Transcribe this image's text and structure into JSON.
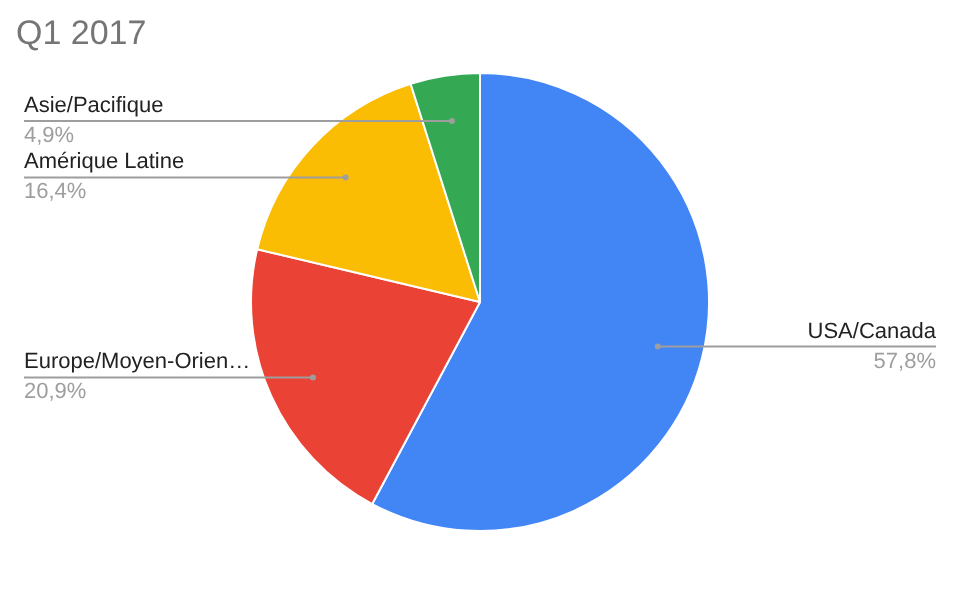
{
  "chart_data": {
    "type": "pie",
    "title": "Q1 2017",
    "categories": [
      "USA/Canada",
      "Europe/Moyen-Orien…",
      "Amérique Latine",
      "Asie/Pacifique"
    ],
    "values": [
      57.8,
      20.9,
      16.4,
      4.9
    ],
    "colors": [
      "#4285f4",
      "#ea4335",
      "#fbbc04",
      "#34a853"
    ],
    "value_labels": [
      "57,8%",
      "20,9%",
      "16,4%",
      "4,9%"
    ]
  }
}
